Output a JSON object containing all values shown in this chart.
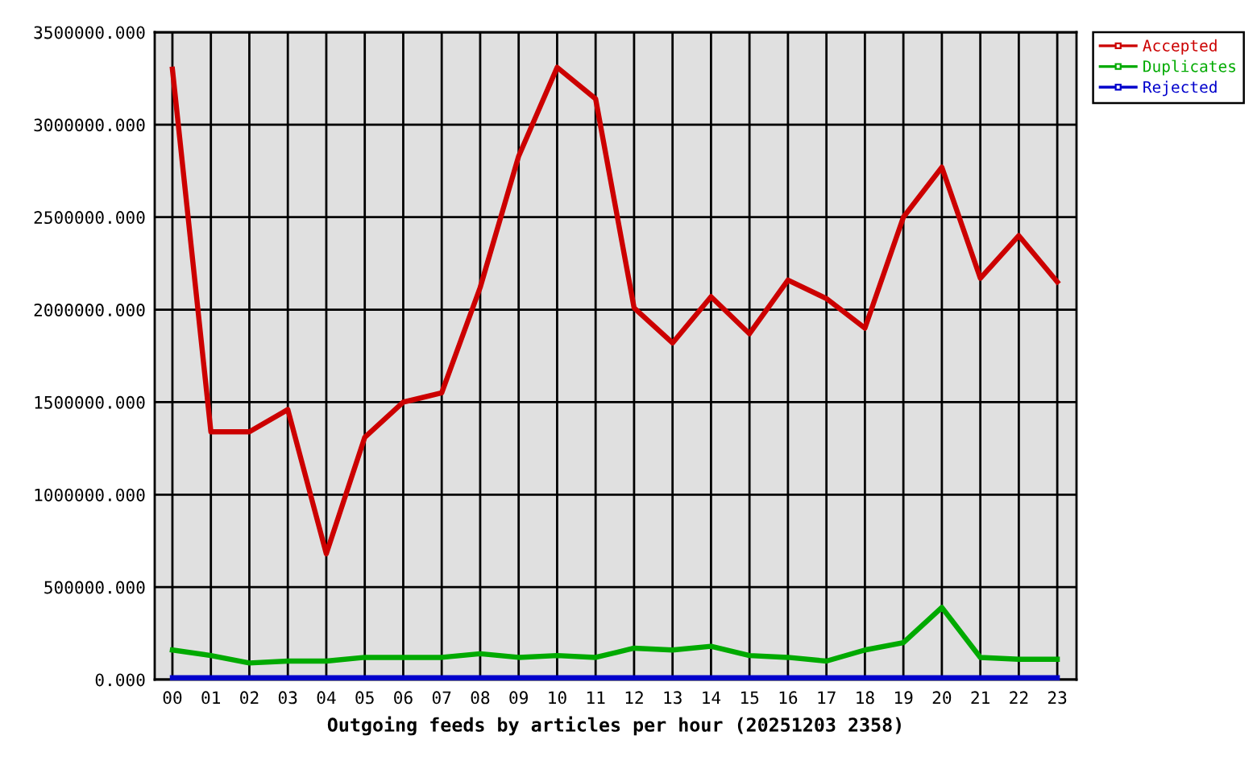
{
  "chart_data": {
    "type": "line",
    "xlabel": "Outgoing feeds by articles per hour (20251203 2358)",
    "categories": [
      "00",
      "01",
      "02",
      "03",
      "04",
      "05",
      "06",
      "07",
      "08",
      "09",
      "10",
      "11",
      "12",
      "13",
      "14",
      "15",
      "16",
      "17",
      "18",
      "19",
      "20",
      "21",
      "22",
      "23"
    ],
    "series": [
      {
        "name": "Accepted",
        "color": "#cc0000",
        "values": [
          3300000,
          1340000,
          1340000,
          1460000,
          680000,
          1310000,
          1500000,
          1550000,
          2120000,
          2830000,
          3310000,
          3140000,
          2010000,
          1820000,
          2070000,
          1870000,
          2160000,
          2060000,
          1900000,
          2500000,
          2770000,
          2170000,
          2400000,
          2150000
        ]
      },
      {
        "name": "Duplicates",
        "color": "#00aa00",
        "values": [
          160000,
          130000,
          90000,
          100000,
          100000,
          120000,
          120000,
          120000,
          140000,
          120000,
          130000,
          120000,
          170000,
          160000,
          180000,
          130000,
          120000,
          100000,
          160000,
          200000,
          390000,
          120000,
          110000,
          110000
        ]
      },
      {
        "name": "Rejected",
        "color": "#0000cc",
        "values": [
          10000,
          10000,
          10000,
          10000,
          10000,
          10000,
          10000,
          10000,
          10000,
          10000,
          10000,
          10000,
          10000,
          10000,
          10000,
          10000,
          10000,
          10000,
          10000,
          10000,
          10000,
          10000,
          10000,
          10000
        ]
      }
    ],
    "ylim": [
      0,
      3500000
    ],
    "yticks": [
      {
        "value": 0,
        "label": "0.000"
      },
      {
        "value": 500000,
        "label": "500000.000"
      },
      {
        "value": 1000000,
        "label": "1000000.000"
      },
      {
        "value": 1500000,
        "label": "1500000.000"
      },
      {
        "value": 2000000,
        "label": "2000000.000"
      },
      {
        "value": 2500000,
        "label": "2500000.000"
      },
      {
        "value": 3000000,
        "label": "3000000.000"
      },
      {
        "value": 3500000,
        "label": "3500000.000"
      }
    ],
    "grid": true,
    "legend": "top right"
  }
}
